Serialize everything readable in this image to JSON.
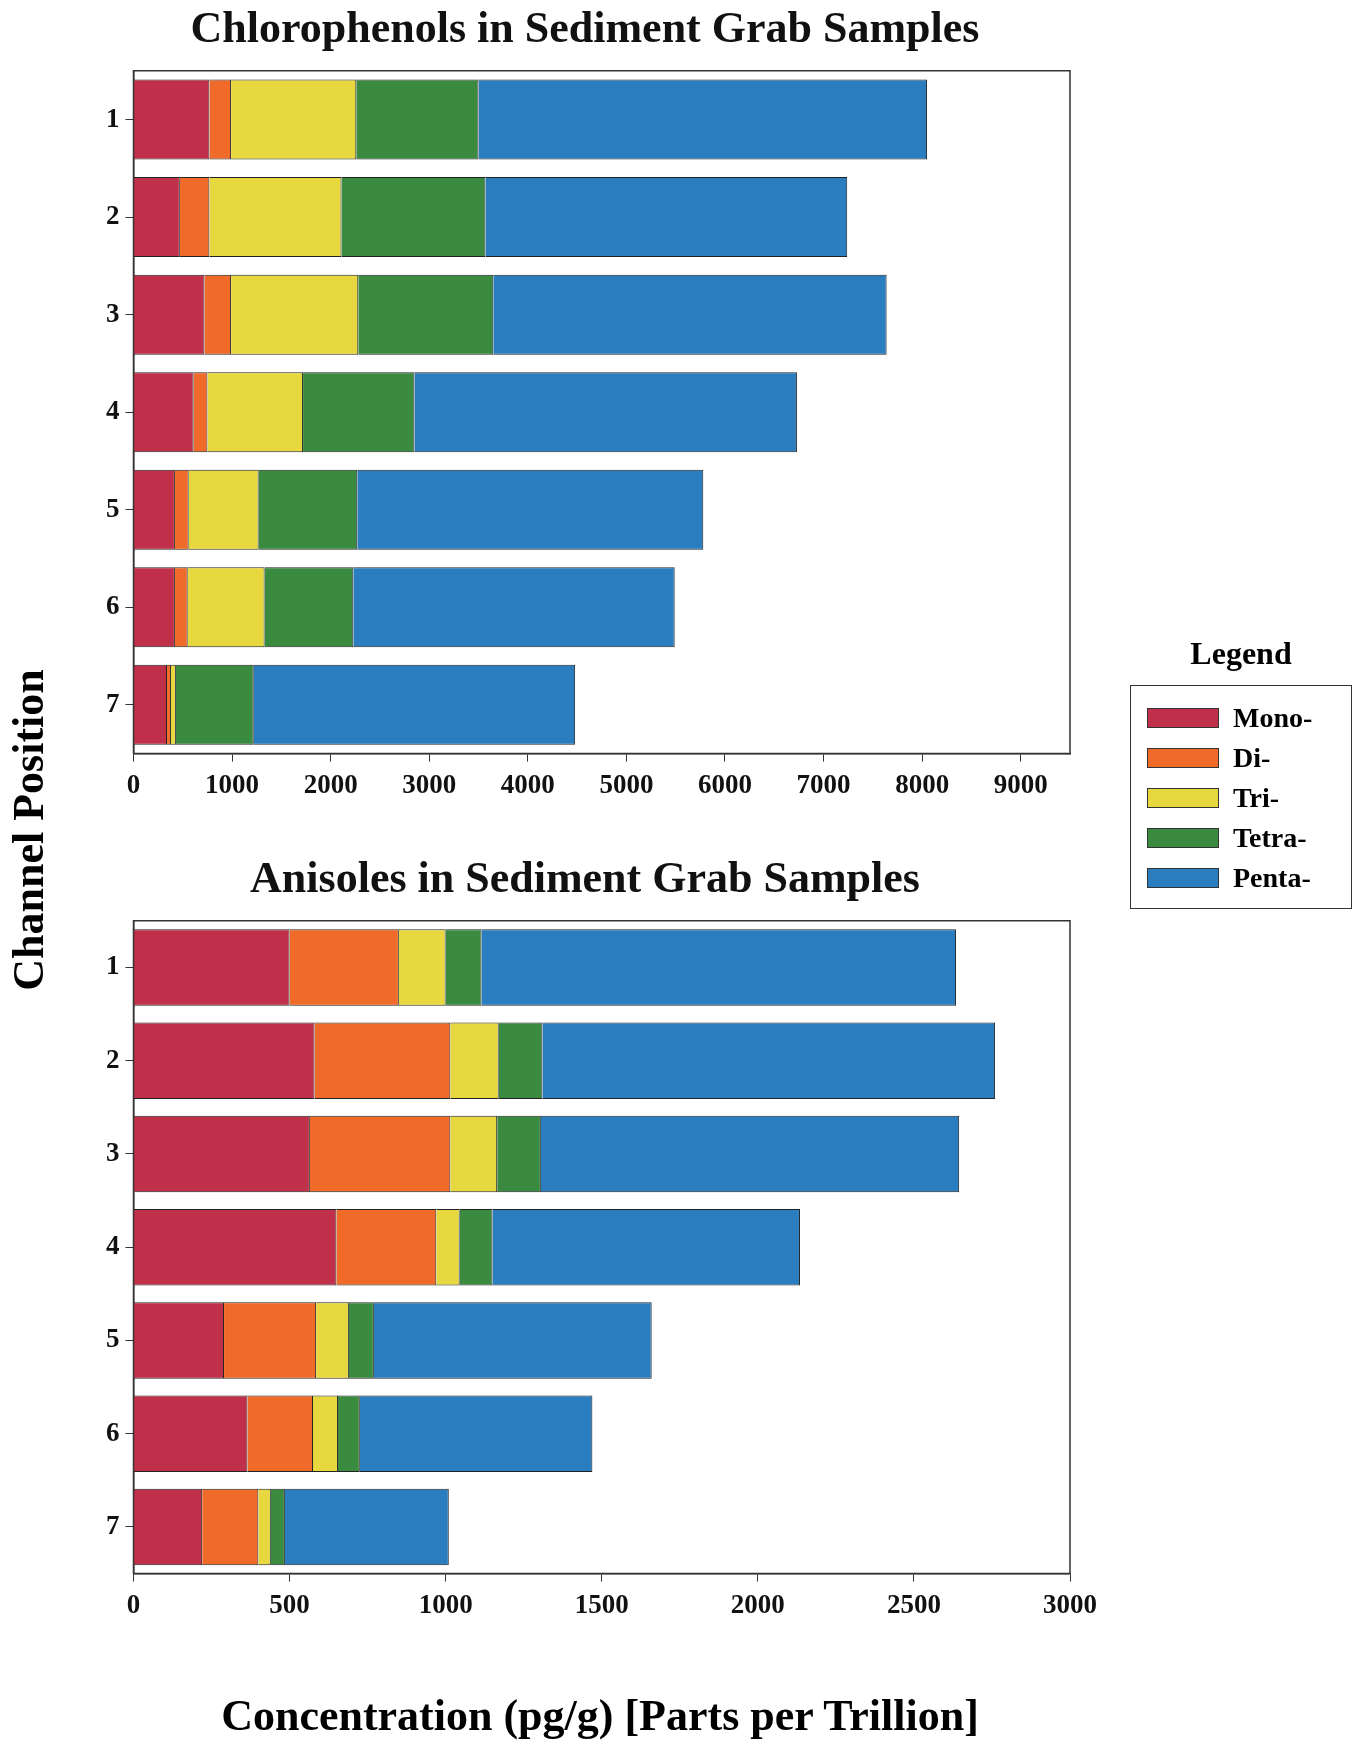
{
  "chart_data": [
    {
      "type": "bar",
      "orientation": "horizontal",
      "stacked": true,
      "title": "Chlorophenols in Sediment Grab Samples",
      "ylabel": "Channel Position",
      "legend_title": "Legend",
      "legend": "right",
      "grid": false,
      "categories": [
        "1",
        "2",
        "3",
        "4",
        "5",
        "6",
        "7"
      ],
      "xlim": [
        0,
        9500
      ],
      "xticks": [
        0,
        1000,
        2000,
        3000,
        4000,
        5000,
        6000,
        7000,
        8000,
        9000
      ],
      "series": [
        {
          "name": "Mono-",
          "color": "#c0304a",
          "values": [
            770,
            470,
            720,
            610,
            420,
            420,
            340
          ]
        },
        {
          "name": "Di-",
          "color": "#f06a2a",
          "values": [
            220,
            300,
            270,
            140,
            140,
            130,
            40
          ]
        },
        {
          "name": "Tri-",
          "color": "#e8d840",
          "values": [
            1270,
            1340,
            1290,
            970,
            710,
            780,
            50
          ]
        },
        {
          "name": "Tetra-",
          "color": "#3a8a40",
          "values": [
            1240,
            1460,
            1370,
            1130,
            1000,
            900,
            790
          ]
        },
        {
          "name": "Penta-",
          "color": "#2a7ec0",
          "values": [
            4550,
            3670,
            3990,
            3880,
            3510,
            3260,
            3260
          ]
        }
      ]
    },
    {
      "type": "bar",
      "orientation": "horizontal",
      "stacked": true,
      "title": "Anisoles in Sediment Grab Samples",
      "xlabel": "Concentration (pg/g)  [Parts per Trillion]",
      "grid": false,
      "categories": [
        "1",
        "2",
        "3",
        "4",
        "5",
        "6",
        "7"
      ],
      "xlim": [
        0,
        3000
      ],
      "xticks": [
        0,
        500,
        1000,
        1500,
        2000,
        2500,
        3000
      ],
      "series": [
        {
          "color": "#c0304a",
          "values": [
            500,
            580,
            565,
            650,
            290,
            365,
            220
          ]
        },
        {
          "color": "#f06a2a",
          "values": [
            350,
            435,
            450,
            320,
            295,
            210,
            180
          ]
        },
        {
          "color": "#e8d840",
          "values": [
            150,
            155,
            150,
            75,
            105,
            80,
            40
          ]
        },
        {
          "color": "#3a8a40",
          "values": [
            115,
            140,
            140,
            105,
            80,
            70,
            45
          ]
        },
        {
          "color": "#2a7ec0",
          "values": [
            1520,
            1450,
            1340,
            985,
            890,
            745,
            525
          ]
        }
      ]
    }
  ]
}
